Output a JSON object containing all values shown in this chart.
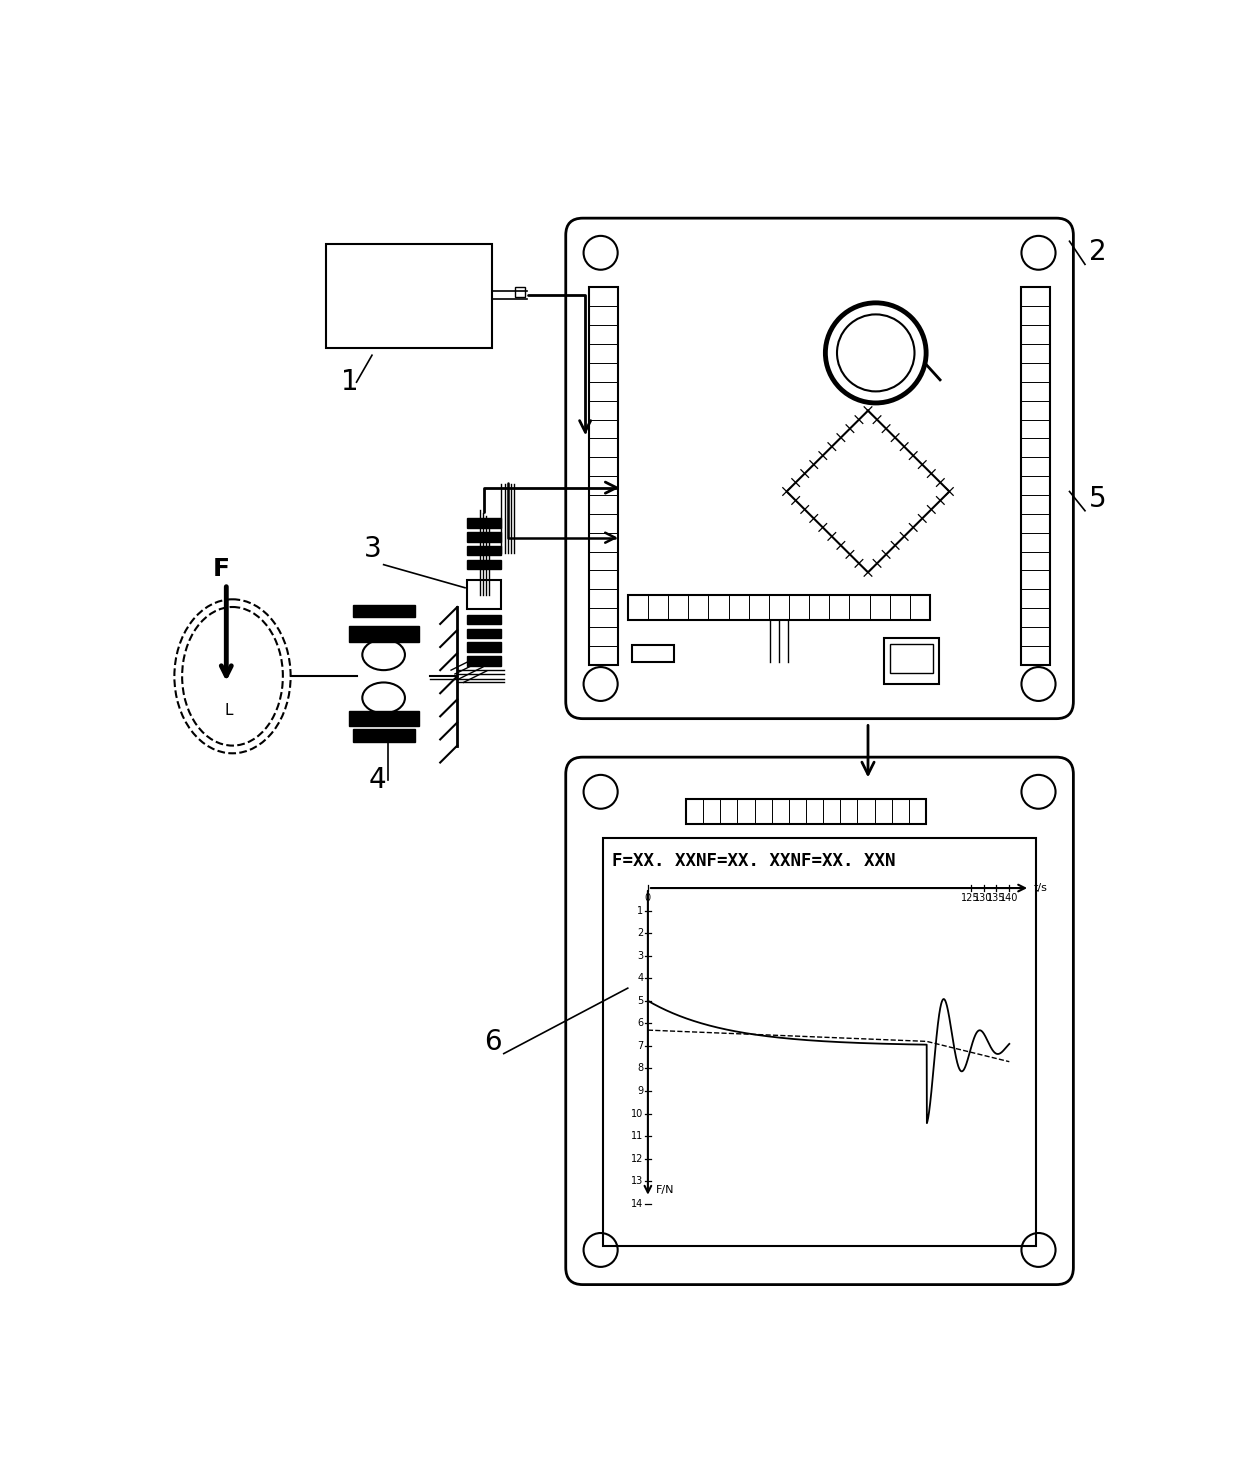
{
  "bg_color": "#ffffff",
  "line_color": "#000000",
  "fig_width": 12.4,
  "fig_height": 14.65,
  "label_1": "1",
  "label_2": "2",
  "label_3": "3",
  "label_4": "4",
  "label_5": "5",
  "label_6": "6",
  "lcd_header_text": "F=XX. XXNF=XX. XXNF=XX. XXN",
  "chart_ylabel": "F/N",
  "chart_xlabel": "t/s",
  "chart_yticks": [
    1,
    2,
    3,
    4,
    5,
    6,
    7,
    8,
    9,
    10,
    11,
    12,
    13,
    14
  ],
  "chart_xticks": [
    0,
    125,
    130,
    135,
    140
  ],
  "chart_ylim": [
    0,
    14
  ],
  "chart_xlim": [
    0,
    145
  ]
}
